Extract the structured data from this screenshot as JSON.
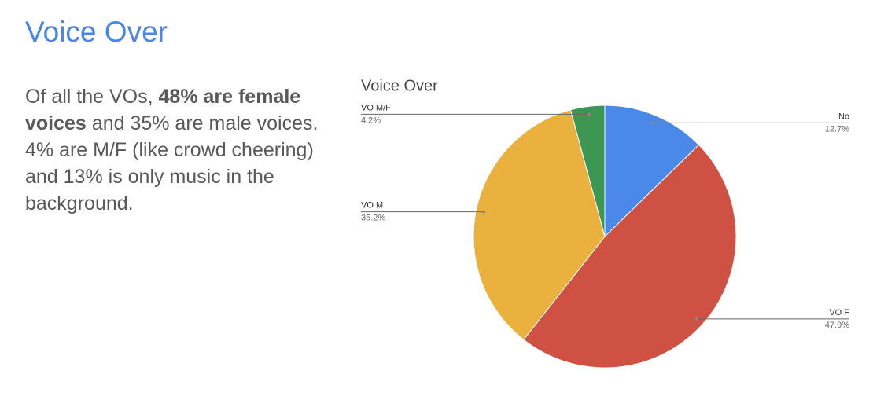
{
  "slide": {
    "title": "Voice Over",
    "paragraph": [
      "Of all the VOs, ",
      "48% are female voices",
      " and 35% are male voices. 4% are M/F (like crowd cheering) and 13% is only music in the background."
    ]
  },
  "chart_data": {
    "type": "pie",
    "title": "Voice Over",
    "categories": [
      "No",
      "VO F",
      "VO M",
      "VO M/F"
    ],
    "values": [
      12.7,
      47.9,
      35.2,
      4.2
    ],
    "value_labels": [
      "12.7%",
      "47.9%",
      "35.2%",
      "4.2%"
    ],
    "colors": [
      "#4a89e8",
      "#cf5143",
      "#ebb13e",
      "#3e9655"
    ]
  }
}
